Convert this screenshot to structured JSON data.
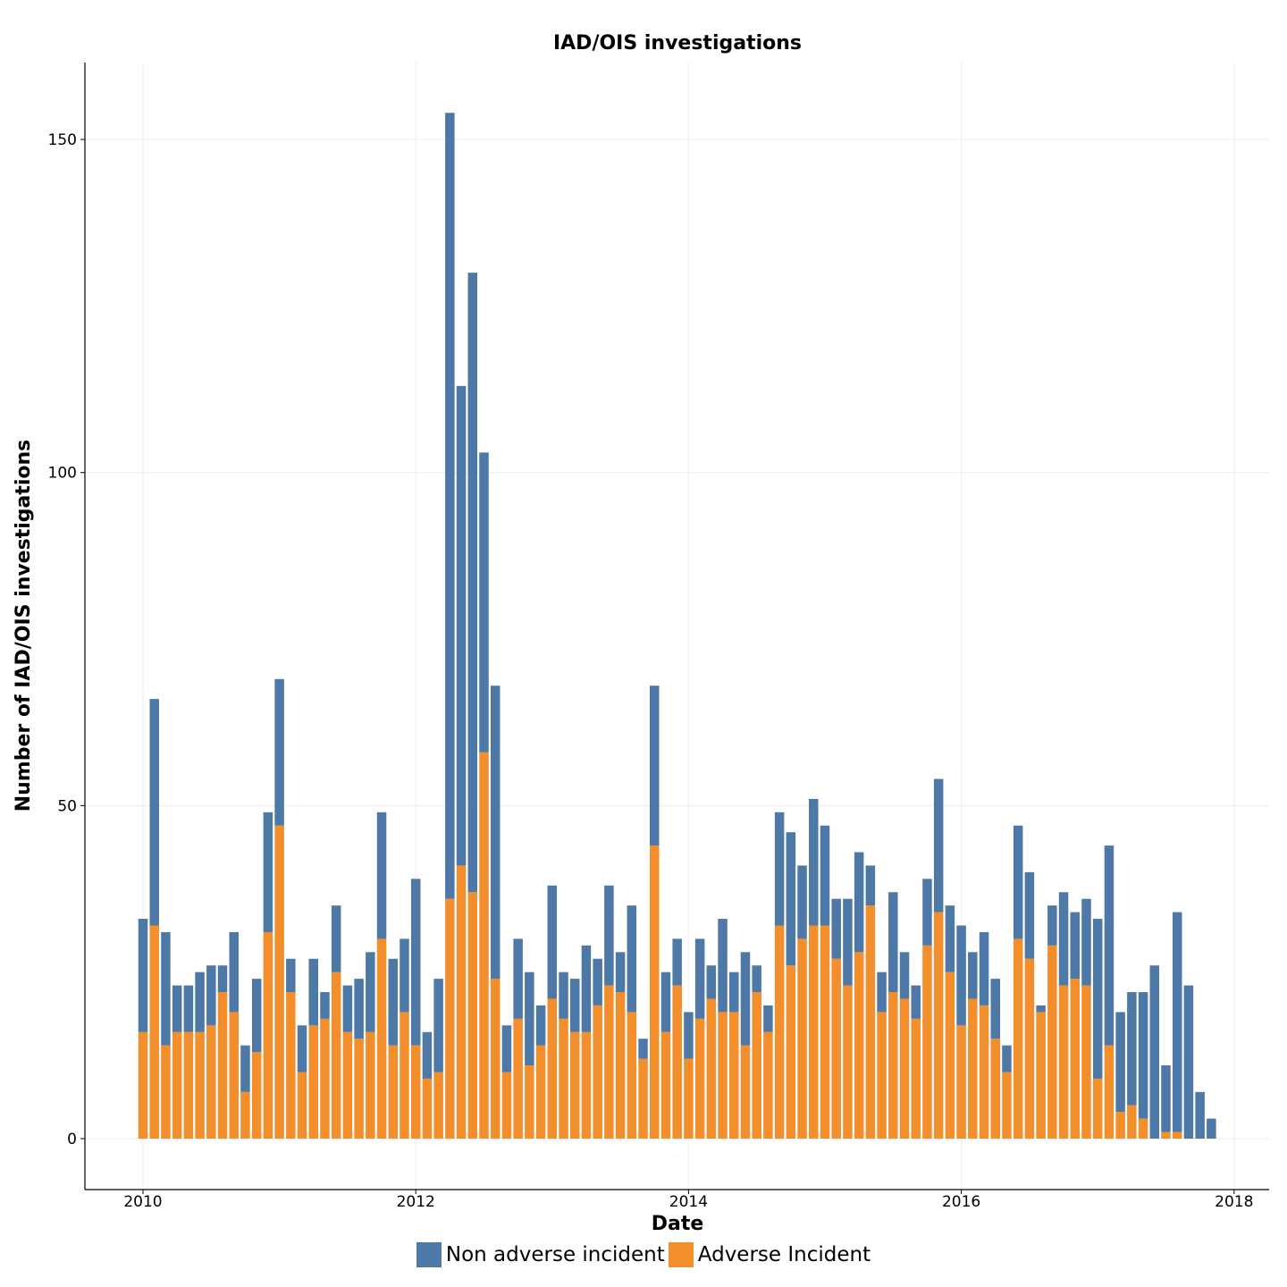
{
  "chart_data": {
    "type": "bar",
    "stacked": true,
    "title": "IAD/OIS investigations",
    "xlabel": "Date",
    "ylabel": "Number of IAD/OIS investigations",
    "x_ticks": [
      "2010",
      "2012",
      "2014",
      "2016",
      "2018"
    ],
    "y_ticks": [
      0,
      50,
      100,
      150
    ],
    "ylim": [
      -7.6,
      161.5
    ],
    "xlim": [
      "2009-08",
      "2018-04"
    ],
    "grid": true,
    "legend_position": "bottom",
    "categories": [
      "2010-01",
      "2010-02",
      "2010-03",
      "2010-04",
      "2010-05",
      "2010-06",
      "2010-07",
      "2010-08",
      "2010-09",
      "2010-10",
      "2010-11",
      "2010-12",
      "2011-01",
      "2011-02",
      "2011-03",
      "2011-04",
      "2011-05",
      "2011-06",
      "2011-07",
      "2011-08",
      "2011-09",
      "2011-10",
      "2011-11",
      "2011-12",
      "2012-01",
      "2012-02",
      "2012-03",
      "2012-04",
      "2012-05",
      "2012-06",
      "2012-07",
      "2012-08",
      "2012-09",
      "2012-10",
      "2012-11",
      "2012-12",
      "2013-01",
      "2013-02",
      "2013-03",
      "2013-04",
      "2013-05",
      "2013-06",
      "2013-07",
      "2013-08",
      "2013-09",
      "2013-10",
      "2013-11",
      "2013-12",
      "2014-01",
      "2014-02",
      "2014-03",
      "2014-04",
      "2014-05",
      "2014-06",
      "2014-07",
      "2014-08",
      "2014-09",
      "2014-10",
      "2014-11",
      "2014-12",
      "2015-01",
      "2015-02",
      "2015-03",
      "2015-04",
      "2015-05",
      "2015-06",
      "2015-07",
      "2015-08",
      "2015-09",
      "2015-10",
      "2015-11",
      "2015-12",
      "2016-01",
      "2016-02",
      "2016-03",
      "2016-04",
      "2016-05",
      "2016-06",
      "2016-07",
      "2016-08",
      "2016-09",
      "2016-10",
      "2016-11",
      "2016-12",
      "2017-01",
      "2017-02",
      "2017-03",
      "2017-04",
      "2017-05",
      "2017-06",
      "2017-07",
      "2017-08",
      "2017-09",
      "2017-10",
      "2017-11"
    ],
    "series": [
      {
        "name": "Adverse Incident",
        "color": "#F28E2B",
        "values": [
          16,
          32,
          14,
          16,
          16,
          16,
          17,
          22,
          19,
          7,
          13,
          31,
          47,
          22,
          10,
          17,
          18,
          25,
          16,
          15,
          16,
          30,
          14,
          19,
          14,
          9,
          10,
          36,
          41,
          37,
          58,
          24,
          10,
          18,
          11,
          14,
          21,
          18,
          16,
          16,
          20,
          23,
          22,
          19,
          12,
          44,
          16,
          23,
          12,
          18,
          21,
          19,
          19,
          14,
          22,
          16,
          32,
          26,
          30,
          32,
          32,
          27,
          23,
          28,
          35,
          19,
          22,
          21,
          18,
          29,
          34,
          25,
          17,
          21,
          20,
          15,
          10,
          30,
          27,
          19,
          29,
          23,
          24,
          23,
          9,
          14,
          4,
          5,
          3,
          0,
          1,
          1,
          0,
          0,
          0
        ]
      },
      {
        "name": "Non adverse incident",
        "color": "#4E79A7",
        "values": [
          17,
          34,
          17,
          7,
          7,
          9,
          9,
          4,
          12,
          7,
          11,
          18,
          22,
          5,
          7,
          10,
          4,
          10,
          7,
          9,
          12,
          19,
          13,
          11,
          25,
          7,
          14,
          118,
          72,
          93,
          45,
          44,
          7,
          12,
          14,
          6,
          17,
          7,
          8,
          13,
          7,
          15,
          6,
          16,
          3,
          24,
          9,
          7,
          7,
          12,
          5,
          14,
          6,
          14,
          4,
          4,
          17,
          20,
          11,
          19,
          15,
          9,
          13,
          15,
          6,
          6,
          15,
          7,
          5,
          10,
          20,
          10,
          15,
          7,
          11,
          9,
          4,
          17,
          13,
          1,
          6,
          14,
          10,
          13,
          24,
          30,
          15,
          17,
          19,
          26,
          10,
          33,
          23,
          7,
          3
        ]
      }
    ]
  },
  "legend": {
    "items": [
      {
        "label": "Non adverse incident",
        "color": "#4E79A7"
      },
      {
        "label": "Adverse Incident",
        "color": "#F28E2B"
      }
    ]
  }
}
